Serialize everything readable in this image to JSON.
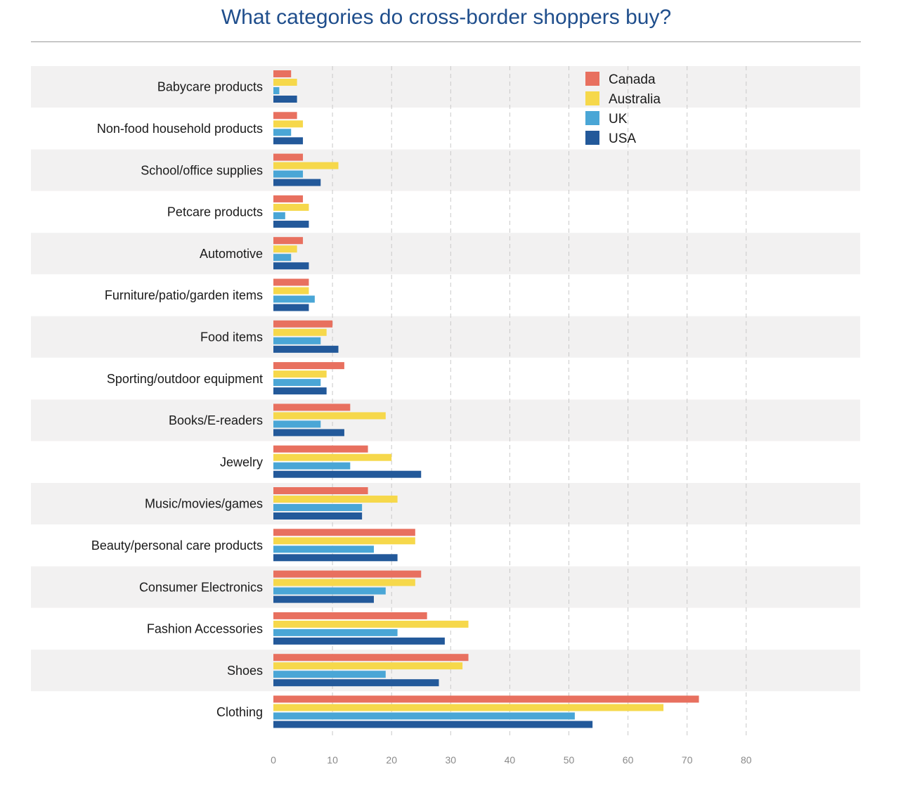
{
  "chart_data": {
    "type": "bar",
    "orientation": "horizontal",
    "title": "What categories do cross-border shoppers buy?",
    "xlabel": "",
    "ylabel": "",
    "xlim": [
      0,
      80
    ],
    "xticks": [
      0,
      10,
      20,
      30,
      40,
      50,
      60,
      70,
      80
    ],
    "grid": "vertical dashed",
    "legend_position": "top-right",
    "categories": [
      "Babycare products",
      "Non-food household products",
      "School/office supplies",
      "Petcare products",
      "Automotive",
      "Furniture/patio/garden items",
      "Food items",
      "Sporting/outdoor equipment",
      "Books/E-readers",
      "Jewelry",
      "Music/movies/games",
      "Beauty/personal care products",
      "Consumer Electronics",
      "Fashion Accessories",
      "Shoes",
      "Clothing"
    ],
    "series": [
      {
        "name": "Canada",
        "color": "#e8705f",
        "values": [
          3,
          4,
          5,
          5,
          5,
          6,
          10,
          12,
          13,
          16,
          16,
          24,
          25,
          26,
          33,
          72
        ]
      },
      {
        "name": "Australia",
        "color": "#f6d84b",
        "values": [
          4,
          5,
          11,
          6,
          4,
          6,
          9,
          9,
          19,
          20,
          21,
          24,
          24,
          33,
          32,
          66
        ]
      },
      {
        "name": "UK",
        "color": "#4aa6d6",
        "values": [
          1,
          3,
          5,
          2,
          3,
          7,
          8,
          8,
          8,
          13,
          15,
          17,
          19,
          21,
          19,
          51
        ]
      },
      {
        "name": "USA",
        "color": "#23599a",
        "values": [
          4,
          5,
          8,
          6,
          6,
          6,
          11,
          9,
          12,
          25,
          15,
          21,
          17,
          29,
          28,
          54
        ]
      }
    ]
  }
}
